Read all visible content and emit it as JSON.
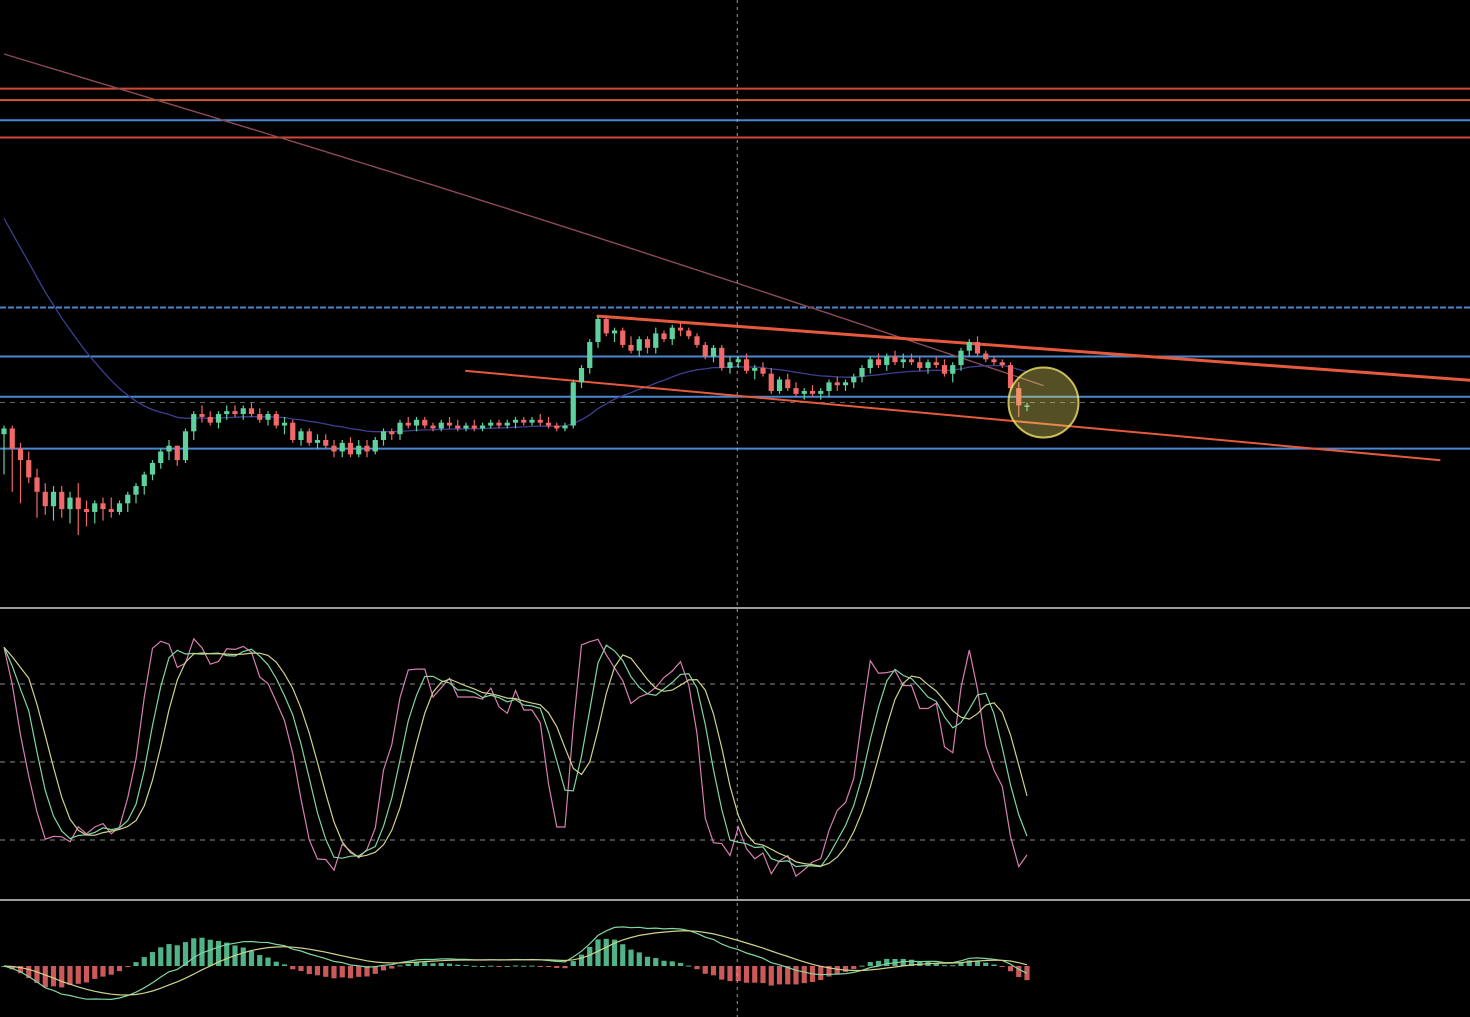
{
  "chart_data": {
    "type": "candlestick",
    "title": "",
    "colors": {
      "background": "#000000",
      "bull": "#5fd19f",
      "bear": "#f06868",
      "level_red": "#e04b3a",
      "level_orange": "#d9622f",
      "level_blue": "#4f8fdc",
      "channel": "#e55a3c",
      "ma_slow": "#8a4a55",
      "ma_fast": "#3c3f8f",
      "highlight": "#f1e36a",
      "osc_pink": "#d77fb0",
      "osc_green": "#7fd6a4",
      "osc_yellow": "#cfd38a",
      "separator": "#cfcfcf",
      "grid_dash": "#8a8a8a"
    },
    "price_range": [
      0,
      100
    ],
    "crosshair_bar": 89,
    "candles": [
      [
        60,
        63,
        46,
        62
      ],
      [
        62,
        63,
        40,
        55
      ],
      [
        55,
        57,
        36,
        51
      ],
      [
        51,
        54,
        43,
        45
      ],
      [
        45,
        48,
        31,
        40
      ],
      [
        40,
        43,
        32,
        35
      ],
      [
        35,
        42,
        30,
        40
      ],
      [
        40,
        42,
        31,
        34
      ],
      [
        34,
        40,
        29,
        38
      ],
      [
        38,
        43,
        25,
        34
      ],
      [
        34,
        37,
        28,
        33
      ],
      [
        33,
        37,
        29,
        36
      ],
      [
        36,
        38,
        30,
        34
      ],
      [
        34,
        38,
        31,
        33
      ],
      [
        33,
        37,
        32,
        36
      ],
      [
        36,
        40,
        33,
        39
      ],
      [
        39,
        43,
        36,
        42
      ],
      [
        42,
        47,
        39,
        46
      ],
      [
        46,
        51,
        44,
        50
      ],
      [
        50,
        55,
        48,
        54
      ],
      [
        54,
        58,
        51,
        56
      ],
      [
        56,
        56,
        49,
        51
      ],
      [
        51,
        62,
        50,
        61
      ],
      [
        61,
        68,
        58,
        67
      ],
      [
        67,
        70,
        64,
        66
      ],
      [
        66,
        68,
        63,
        64
      ],
      [
        64,
        68,
        62,
        67
      ],
      [
        67,
        70,
        65,
        68
      ],
      [
        68,
        70,
        66,
        67
      ],
      [
        67,
        70,
        65,
        69
      ],
      [
        69,
        71,
        66,
        67
      ],
      [
        67,
        69,
        64,
        65
      ],
      [
        65,
        68,
        63,
        67
      ],
      [
        67,
        68,
        62,
        63
      ],
      [
        63,
        66,
        60,
        64
      ],
      [
        64,
        65,
        57,
        58
      ],
      [
        58,
        62,
        56,
        61
      ],
      [
        61,
        62,
        56,
        57
      ],
      [
        57,
        60,
        55,
        58
      ],
      [
        58,
        60,
        55,
        56
      ],
      [
        56,
        58,
        52,
        54
      ],
      [
        54,
        58,
        52,
        57
      ],
      [
        57,
        59,
        52,
        53
      ],
      [
        53,
        58,
        52,
        56
      ],
      [
        56,
        58,
        52,
        54
      ],
      [
        54,
        59,
        53,
        58
      ],
      [
        58,
        62,
        56,
        61
      ],
      [
        61,
        62,
        58,
        60
      ],
      [
        60,
        65,
        58,
        64
      ],
      [
        64,
        66,
        62,
        63
      ],
      [
        63,
        66,
        61,
        65
      ],
      [
        65,
        66,
        62,
        63
      ],
      [
        63,
        64,
        61,
        62
      ],
      [
        62,
        65,
        61,
        64
      ],
      [
        64,
        66,
        62,
        63
      ],
      [
        63,
        65,
        61,
        62
      ],
      [
        62,
        64,
        61,
        63
      ],
      [
        63,
        65,
        61,
        62
      ],
      [
        62,
        64,
        61,
        63
      ],
      [
        63,
        65,
        62,
        64
      ],
      [
        64,
        65,
        62,
        63
      ],
      [
        63,
        65,
        62,
        64
      ],
      [
        64,
        66,
        62,
        65
      ],
      [
        65,
        66,
        63,
        64
      ],
      [
        64,
        66,
        63,
        65
      ],
      [
        65,
        67,
        63,
        64
      ],
      [
        64,
        66,
        62,
        63
      ],
      [
        63,
        64,
        61,
        62
      ],
      [
        62,
        64,
        61,
        63
      ],
      [
        63,
        79,
        62,
        78
      ],
      [
        78,
        84,
        76,
        83
      ],
      [
        83,
        93,
        81,
        92
      ],
      [
        92,
        101,
        90,
        100
      ],
      [
        100,
        101,
        94,
        95
      ],
      [
        95,
        97,
        92,
        96
      ],
      [
        96,
        97,
        90,
        91
      ],
      [
        91,
        94,
        88,
        89
      ],
      [
        89,
        94,
        87,
        93
      ],
      [
        93,
        94,
        88,
        90
      ],
      [
        90,
        97,
        88,
        95
      ],
      [
        95,
        96,
        92,
        93
      ],
      [
        93,
        98,
        91,
        97
      ],
      [
        97,
        99,
        94,
        96
      ],
      [
        96,
        97,
        93,
        94
      ],
      [
        94,
        95,
        90,
        91
      ],
      [
        91,
        92,
        86,
        87
      ],
      [
        87,
        91,
        85,
        90
      ],
      [
        90,
        91,
        82,
        83
      ],
      [
        83,
        87,
        81,
        85
      ],
      [
        85,
        87,
        83,
        86
      ],
      [
        86,
        88,
        81,
        82
      ],
      [
        82,
        84,
        79,
        83
      ],
      [
        83,
        85,
        80,
        81
      ],
      [
        81,
        83,
        74,
        75
      ],
      [
        75,
        80,
        74,
        79
      ],
      [
        79,
        81,
        75,
        76
      ],
      [
        76,
        78,
        73,
        74
      ],
      [
        74,
        76,
        72,
        75
      ],
      [
        75,
        77,
        73,
        74
      ],
      [
        74,
        76,
        72,
        75
      ],
      [
        75,
        79,
        73,
        78
      ],
      [
        78,
        80,
        75,
        77
      ],
      [
        77,
        79,
        75,
        78
      ],
      [
        78,
        81,
        76,
        80
      ],
      [
        80,
        84,
        78,
        83
      ],
      [
        83,
        87,
        81,
        86
      ],
      [
        86,
        88,
        83,
        84
      ],
      [
        84,
        88,
        82,
        87
      ],
      [
        87,
        89,
        84,
        85
      ],
      [
        85,
        88,
        83,
        86
      ],
      [
        86,
        88,
        84,
        85
      ],
      [
        85,
        87,
        82,
        83
      ],
      [
        83,
        86,
        81,
        85
      ],
      [
        85,
        87,
        83,
        84
      ],
      [
        84,
        86,
        80,
        81
      ],
      [
        81,
        85,
        78,
        84
      ],
      [
        84,
        90,
        82,
        89
      ],
      [
        89,
        93,
        87,
        92
      ],
      [
        92,
        94,
        87,
        88
      ],
      [
        88,
        89,
        85,
        86
      ],
      [
        86,
        87,
        84,
        85
      ],
      [
        85,
        86,
        83,
        84
      ],
      [
        84,
        85,
        75,
        76
      ],
      [
        76,
        78,
        66,
        70
      ],
      [
        70,
        71,
        68,
        70
      ]
    ],
    "levels": [
      {
        "price": 180,
        "color": "level_red"
      },
      {
        "price": 176,
        "color": "level_orange"
      },
      {
        "price": 169,
        "color": "level_blue"
      },
      {
        "price": 163,
        "color": "level_red"
      },
      {
        "price": 104,
        "color": "level_blue",
        "dashed": true
      },
      {
        "price": 87,
        "color": "level_blue"
      },
      {
        "price": 73,
        "color": "level_blue"
      },
      {
        "price": 71,
        "color": "grid_dash",
        "dashed": true
      },
      {
        "price": 55,
        "color": "level_blue"
      }
    ],
    "channel_upper": {
      "from": [
        72,
        101
      ],
      "to": [
        186,
        77
      ]
    },
    "channel_lower": {
      "from": [
        56,
        82
      ],
      "to": [
        174,
        51
      ]
    },
    "highlight": {
      "bar": 126,
      "price": 71
    },
    "stoch_range": [
      0,
      100
    ],
    "stoch_levels": [
      80,
      50,
      20
    ]
  }
}
